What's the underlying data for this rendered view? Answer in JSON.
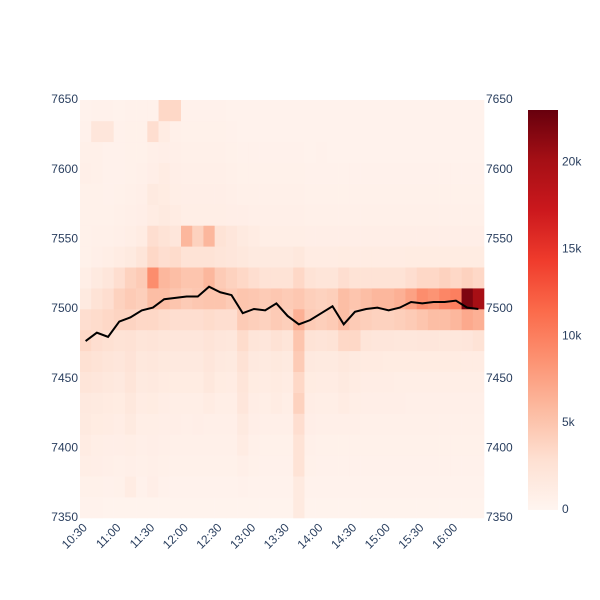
{
  "chart_data": {
    "type": "heatmap",
    "x": [
      "10:30",
      "10:40",
      "10:50",
      "11:00",
      "11:10",
      "11:20",
      "11:30",
      "11:40",
      "11:50",
      "12:00",
      "12:10",
      "12:20",
      "12:30",
      "12:40",
      "12:50",
      "13:00",
      "13:10",
      "13:20",
      "13:30",
      "13:40",
      "13:50",
      "14:00",
      "14:10",
      "14:20",
      "14:30",
      "14:40",
      "14:50",
      "15:00",
      "15:10",
      "15:20",
      "15:30",
      "15:40",
      "15:50",
      "16:00",
      "16:10",
      "16:20"
    ],
    "xlim": [
      "10:25",
      "16:25"
    ],
    "xticks": [
      "10:30",
      "11:00",
      "11:30",
      "12:00",
      "12:30",
      "13:00",
      "13:30",
      "14:00",
      "14:30",
      "15:00",
      "15:30",
      "16:00"
    ],
    "ybins": [
      7350,
      7365,
      7380,
      7395,
      7410,
      7425,
      7440,
      7455,
      7470,
      7485,
      7500,
      7515,
      7530,
      7545,
      7560,
      7575,
      7590,
      7605,
      7620,
      7635,
      7650
    ],
    "ylim": [
      7350,
      7650
    ],
    "yticks": [
      7350,
      7400,
      7450,
      7500,
      7550,
      7600,
      7650
    ],
    "y2lim": [
      7350,
      7650
    ],
    "y2ticks": [
      7350,
      7400,
      7450,
      7500,
      7550,
      7600,
      7650
    ],
    "z": [
      [
        400,
        400,
        300,
        300,
        300,
        300,
        300,
        300,
        300,
        300,
        300,
        300,
        300,
        300,
        300,
        300,
        300,
        300,
        300,
        1500,
        300,
        300,
        300,
        300,
        300,
        300,
        300,
        300,
        300,
        300,
        300,
        300,
        300,
        300,
        300,
        300
      ],
      [
        600,
        600,
        500,
        600,
        1200,
        500,
        900,
        500,
        400,
        400,
        400,
        400,
        400,
        400,
        500,
        400,
        400,
        400,
        400,
        1500,
        400,
        400,
        400,
        400,
        400,
        400,
        400,
        400,
        400,
        400,
        400,
        400,
        400,
        400,
        400,
        400
      ],
      [
        1000,
        900,
        800,
        700,
        800,
        700,
        800,
        700,
        600,
        600,
        600,
        600,
        600,
        600,
        800,
        600,
        500,
        500,
        500,
        2500,
        600,
        500,
        500,
        500,
        500,
        500,
        500,
        500,
        500,
        500,
        500,
        500,
        500,
        500,
        500,
        500
      ],
      [
        1200,
        1000,
        900,
        900,
        1000,
        800,
        900,
        800,
        700,
        700,
        700,
        700,
        700,
        700,
        1200,
        700,
        600,
        600,
        600,
        2500,
        700,
        600,
        600,
        600,
        600,
        600,
        600,
        600,
        600,
        600,
        600,
        600,
        600,
        600,
        600,
        600
      ],
      [
        1500,
        1300,
        1200,
        1100,
        1500,
        1000,
        1000,
        900,
        900,
        800,
        900,
        800,
        800,
        800,
        1500,
        900,
        800,
        800,
        800,
        3000,
        900,
        800,
        800,
        800,
        800,
        700,
        700,
        700,
        700,
        700,
        700,
        700,
        700,
        700,
        700,
        700
      ],
      [
        1600,
        1500,
        1400,
        1300,
        1800,
        1200,
        1300,
        1100,
        1000,
        1000,
        1000,
        1200,
        1000,
        1000,
        2000,
        1100,
        1000,
        1200,
        1000,
        4000,
        1100,
        1000,
        1000,
        1200,
        1000,
        900,
        900,
        900,
        900,
        800,
        800,
        800,
        800,
        800,
        800,
        800
      ],
      [
        2200,
        2000,
        1800,
        1600,
        2200,
        1500,
        1600,
        1400,
        1300,
        1300,
        1300,
        1800,
        1300,
        1200,
        2200,
        1300,
        1200,
        1400,
        1200,
        3500,
        1300,
        1200,
        1200,
        1500,
        1200,
        1100,
        1100,
        1100,
        1000,
        1000,
        1000,
        1000,
        1000,
        1000,
        1000,
        1000
      ],
      [
        2800,
        2500,
        2200,
        2000,
        2400,
        1800,
        1900,
        1700,
        1600,
        1600,
        1600,
        2000,
        1600,
        1500,
        2600,
        1600,
        1500,
        1700,
        1500,
        4500,
        1600,
        1500,
        1500,
        1800,
        1500,
        1400,
        1400,
        1300,
        1300,
        1300,
        1300,
        1300,
        1300,
        1300,
        1200,
        1200
      ],
      [
        3500,
        3000,
        2800,
        2500,
        2600,
        2200,
        2300,
        2100,
        2000,
        2000,
        2000,
        2300,
        2000,
        1900,
        3200,
        2200,
        2000,
        2600,
        2200,
        5000,
        2500,
        2300,
        2500,
        3500,
        3500,
        2200,
        2000,
        2000,
        1900,
        1900,
        2000,
        2000,
        1900,
        1900,
        2000,
        2500
      ],
      [
        3000,
        3200,
        3500,
        3800,
        3800,
        3500,
        3500,
        3200,
        3000,
        3000,
        3000,
        3200,
        3000,
        3000,
        4500,
        4200,
        4000,
        4500,
        4200,
        6500,
        4500,
        4200,
        4500,
        5500,
        4500,
        4200,
        4000,
        4000,
        4200,
        4500,
        5000,
        5500,
        5500,
        6000,
        7000,
        6500
      ],
      [
        1500,
        2500,
        3000,
        4000,
        4500,
        4200,
        5500,
        5500,
        5000,
        4500,
        4800,
        5000,
        5000,
        4500,
        5000,
        4800,
        4500,
        4800,
        4500,
        4800,
        4200,
        4000,
        4200,
        5500,
        5000,
        5500,
        6000,
        6000,
        6500,
        7500,
        9000,
        8500,
        9500,
        10000,
        22000,
        20000
      ],
      [
        1000,
        1500,
        2000,
        3000,
        4000,
        4500,
        9000,
        6000,
        5500,
        5000,
        5000,
        6000,
        4500,
        4000,
        3500,
        3000,
        2500,
        2500,
        2500,
        3500,
        2500,
        2200,
        2200,
        3000,
        2500,
        2500,
        2500,
        2500,
        2500,
        3000,
        3500,
        3500,
        4000,
        3500,
        4000,
        3500
      ],
      [
        600,
        800,
        1000,
        1200,
        1500,
        2200,
        3500,
        3000,
        3200,
        2500,
        2500,
        2500,
        2200,
        2000,
        1800,
        1500,
        1500,
        1500,
        1500,
        1800,
        1200,
        1200,
        1200,
        1300,
        1200,
        1200,
        1200,
        1200,
        1200,
        1300,
        1300,
        1300,
        1300,
        1300,
        1300,
        1300
      ],
      [
        600,
        700,
        700,
        800,
        1000,
        1200,
        3000,
        2500,
        2000,
        6000,
        4000,
        6000,
        2500,
        2000,
        1500,
        1200,
        1000,
        1000,
        1000,
        1000,
        900,
        900,
        900,
        900,
        900,
        900,
        900,
        900,
        900,
        900,
        900,
        900,
        900,
        900,
        900,
        900
      ],
      [
        600,
        600,
        600,
        700,
        800,
        900,
        1200,
        1500,
        1200,
        1000,
        1000,
        1000,
        1000,
        900,
        900,
        800,
        800,
        800,
        800,
        800,
        700,
        700,
        700,
        700,
        700,
        700,
        700,
        700,
        700,
        700,
        700,
        700,
        700,
        700,
        700,
        700
      ],
      [
        600,
        600,
        500,
        600,
        700,
        800,
        1500,
        1300,
        1000,
        900,
        900,
        900,
        900,
        800,
        700,
        700,
        700,
        700,
        700,
        700,
        600,
        600,
        600,
        600,
        600,
        600,
        600,
        600,
        600,
        600,
        600,
        600,
        600,
        600,
        600,
        600
      ],
      [
        800,
        700,
        500,
        500,
        600,
        700,
        900,
        1200,
        900,
        800,
        800,
        800,
        800,
        700,
        600,
        600,
        600,
        600,
        600,
        600,
        500,
        500,
        500,
        500,
        500,
        500,
        500,
        500,
        500,
        500,
        500,
        500,
        500,
        500,
        500,
        500
      ],
      [
        700,
        700,
        500,
        500,
        600,
        600,
        800,
        900,
        800,
        700,
        700,
        700,
        700,
        600,
        500,
        500,
        500,
        500,
        500,
        500,
        400,
        500,
        400,
        400,
        400,
        400,
        400,
        400,
        400,
        400,
        400,
        400,
        400,
        400,
        400,
        400
      ],
      [
        500,
        2000,
        2000,
        500,
        600,
        600,
        3000,
        1200,
        700,
        600,
        600,
        600,
        600,
        500,
        400,
        400,
        400,
        400,
        400,
        400,
        400,
        400,
        400,
        400,
        400,
        400,
        400,
        400,
        400,
        400,
        400,
        400,
        400,
        400,
        400,
        400
      ],
      [
        400,
        500,
        500,
        400,
        500,
        500,
        500,
        3500,
        3500,
        500,
        500,
        500,
        500,
        400,
        400,
        400,
        400,
        400,
        400,
        400,
        400,
        400,
        400,
        400,
        400,
        400,
        400,
        400,
        400,
        400,
        400,
        400,
        400,
        400,
        400,
        400
      ]
    ],
    "colorscale": [
      "#fff5f0",
      "#fee0d2",
      "#fcbba1",
      "#fc9272",
      "#fb6a4a",
      "#ef3b2c",
      "#cb181d",
      "#a50f15",
      "#67000d"
    ],
    "zlim": [
      0,
      23000
    ],
    "zticks": [
      0,
      {
        "value": 5000,
        "label": "5k"
      },
      {
        "value": 10000,
        "label": "10k"
      },
      {
        "value": 15000,
        "label": "15k"
      },
      {
        "value": 20000,
        "label": "20k"
      }
    ],
    "line": {
      "color": "#000000",
      "values": [
        7477,
        7483,
        7480,
        7491,
        7494,
        7499,
        7501,
        7507,
        7508,
        7509,
        7509,
        7516,
        7512,
        7510,
        7497,
        7500,
        7499,
        7504,
        7495,
        7489,
        7492,
        7497,
        7502,
        7489,
        7498,
        7500,
        7501,
        7499,
        7501,
        7505,
        7504,
        7505,
        7505,
        7506,
        7501,
        7500
      ]
    }
  }
}
